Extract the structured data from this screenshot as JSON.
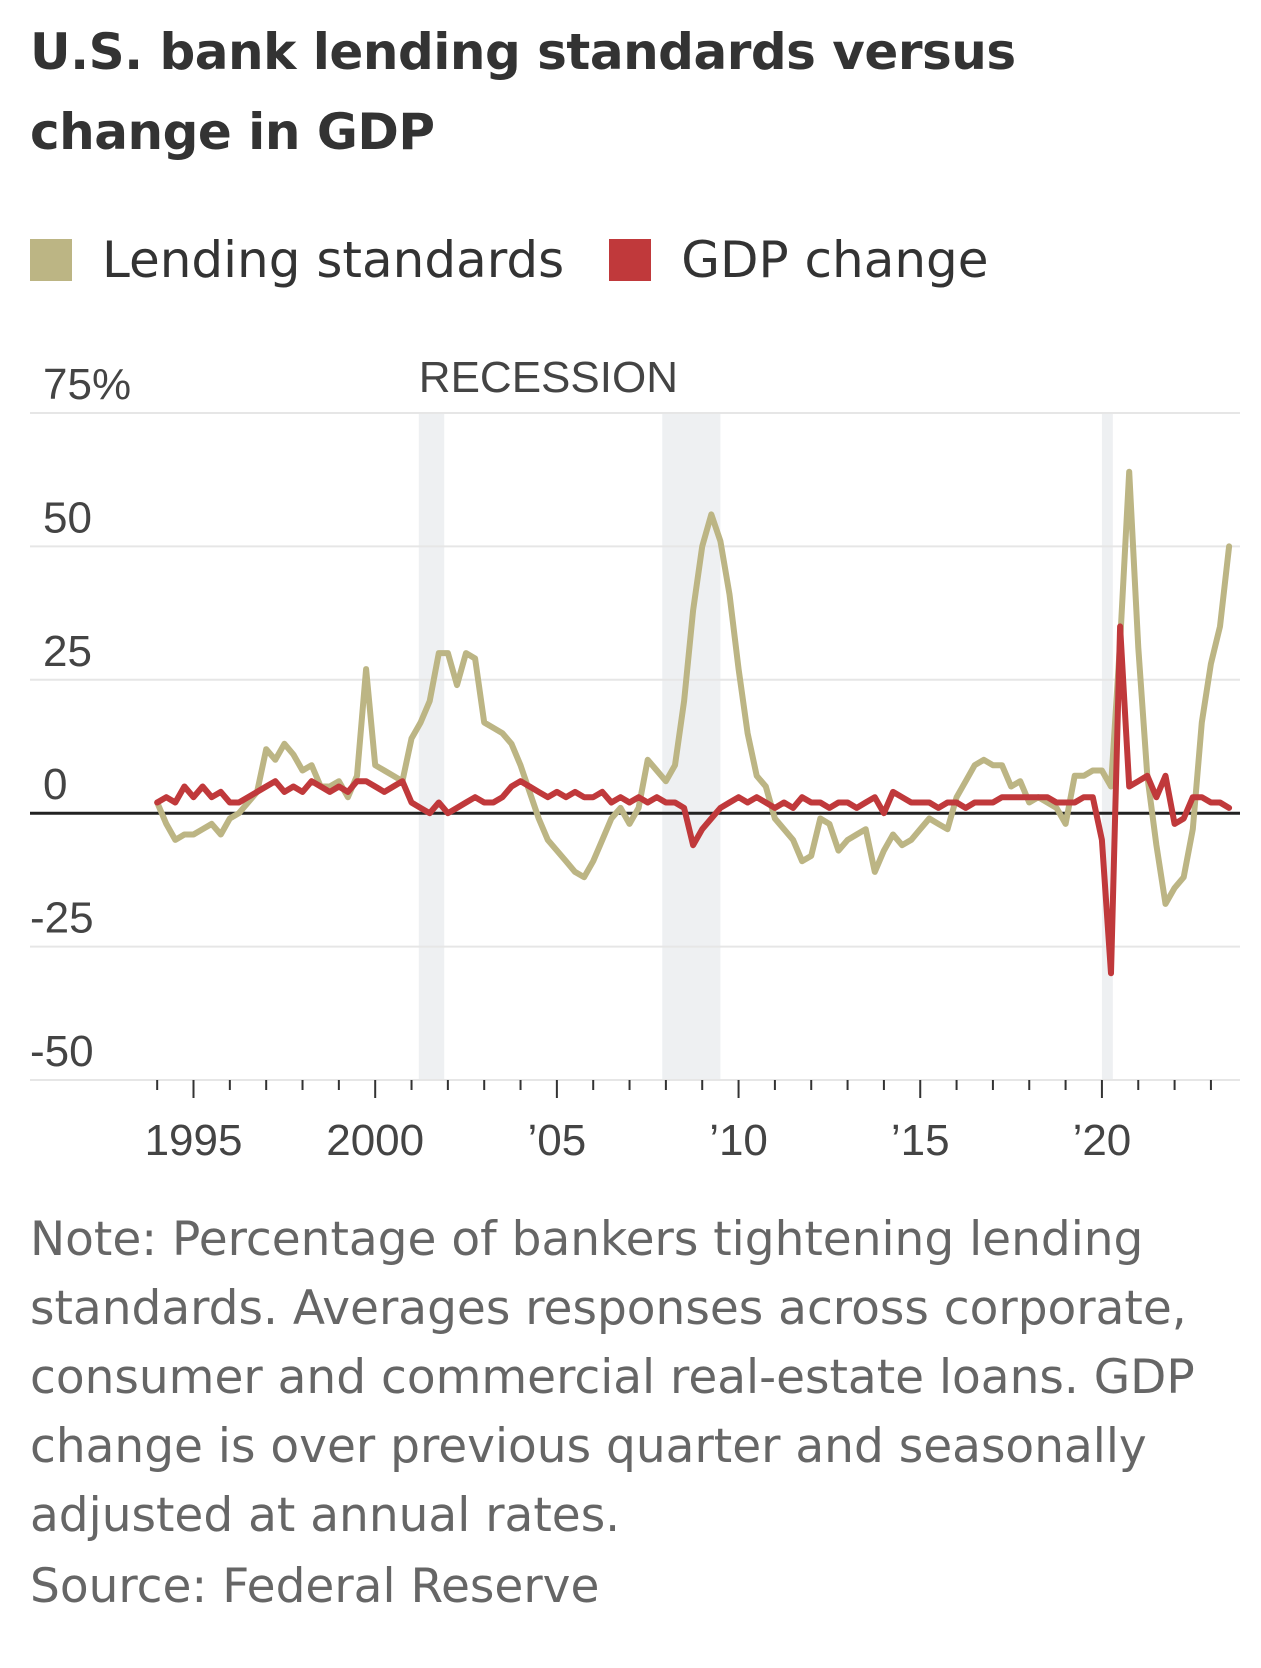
{
  "title": "U.S. bank lending standards versus change in GDP",
  "legend": [
    {
      "label": "Lending standards",
      "color": "#bcb584"
    },
    {
      "label": "GDP change",
      "color": "#c0393b"
    }
  ],
  "note": "Note: Percentage of bankers tightening lending standards. Averages responses across corporate, consumer and commercial real-estate loans. GDP change is over previous quarter and seasonally adjusted at annual rates.",
  "source": "Source: Federal Reserve",
  "chart_data": {
    "type": "line",
    "y_ticks": [
      {
        "value": 75,
        "label": "75%"
      },
      {
        "value": 50,
        "label": "50"
      },
      {
        "value": 25,
        "label": "25"
      },
      {
        "value": 0,
        "label": "0"
      },
      {
        "value": -25,
        "label": "-25"
      },
      {
        "value": -50,
        "label": "-50"
      }
    ],
    "x_ticks": [
      {
        "value": 1995,
        "label": "1995"
      },
      {
        "value": 2000,
        "label": "2000"
      },
      {
        "value": 2005,
        "label": "’0 5"
      },
      {
        "value": 2010,
        "label": "’10"
      },
      {
        "value": 2015,
        "label": "’15"
      },
      {
        "value": 2020,
        "label": "’20"
      }
    ],
    "xlim": [
      1990.5,
      2023.8
    ],
    "ylim": [
      -50,
      75
    ],
    "recession_label": "RECESSION",
    "recessions": [
      [
        2001.2,
        2001.9
      ],
      [
        2007.9,
        2009.5
      ],
      [
        2020.0,
        2020.3
      ]
    ],
    "series": [
      {
        "name": "Lending standards",
        "color": "#bcb584",
        "points": [
          [
            1994.0,
            2
          ],
          [
            1994.25,
            -2
          ],
          [
            1994.5,
            -5
          ],
          [
            1994.75,
            -4
          ],
          [
            1995.0,
            -4
          ],
          [
            1995.25,
            -3
          ],
          [
            1995.5,
            -2
          ],
          [
            1995.75,
            -4
          ],
          [
            1996.0,
            -1
          ],
          [
            1996.25,
            0
          ],
          [
            1996.5,
            2
          ],
          [
            1996.75,
            4
          ],
          [
            1997.0,
            12
          ],
          [
            1997.25,
            10
          ],
          [
            1997.5,
            13
          ],
          [
            1997.75,
            11
          ],
          [
            1998.0,
            8
          ],
          [
            1998.25,
            9
          ],
          [
            1998.5,
            5
          ],
          [
            1998.75,
            5
          ],
          [
            1999.0,
            6
          ],
          [
            1999.25,
            3
          ],
          [
            1999.5,
            7
          ],
          [
            1999.75,
            27
          ],
          [
            2000.0,
            9
          ],
          [
            2000.25,
            8
          ],
          [
            2000.5,
            7
          ],
          [
            2000.75,
            6
          ],
          [
            2001.0,
            14
          ],
          [
            2001.25,
            17
          ],
          [
            2001.5,
            21
          ],
          [
            2001.75,
            30
          ],
          [
            2002.0,
            30
          ],
          [
            2002.25,
            24
          ],
          [
            2002.5,
            30
          ],
          [
            2002.75,
            29
          ],
          [
            2003.0,
            17
          ],
          [
            2003.25,
            16
          ],
          [
            2003.5,
            15
          ],
          [
            2003.75,
            13
          ],
          [
            2004.0,
            9
          ],
          [
            2004.25,
            4
          ],
          [
            2004.5,
            -1
          ],
          [
            2004.75,
            -5
          ],
          [
            2005.0,
            -7
          ],
          [
            2005.25,
            -9
          ],
          [
            2005.5,
            -11
          ],
          [
            2005.75,
            -12
          ],
          [
            2006.0,
            -9
          ],
          [
            2006.25,
            -5
          ],
          [
            2006.5,
            -1
          ],
          [
            2006.75,
            1
          ],
          [
            2007.0,
            -2
          ],
          [
            2007.25,
            1
          ],
          [
            2007.5,
            10
          ],
          [
            2007.75,
            8
          ],
          [
            2008.0,
            6
          ],
          [
            2008.25,
            9
          ],
          [
            2008.5,
            21
          ],
          [
            2008.75,
            38
          ],
          [
            2009.0,
            50
          ],
          [
            2009.25,
            56
          ],
          [
            2009.5,
            51
          ],
          [
            2009.75,
            41
          ],
          [
            2010.0,
            27
          ],
          [
            2010.25,
            15
          ],
          [
            2010.5,
            7
          ],
          [
            2010.75,
            5
          ],
          [
            2011.0,
            -1
          ],
          [
            2011.25,
            -3
          ],
          [
            2011.5,
            -5
          ],
          [
            2011.75,
            -9
          ],
          [
            2012.0,
            -8
          ],
          [
            2012.25,
            -1
          ],
          [
            2012.5,
            -2
          ],
          [
            2012.75,
            -7
          ],
          [
            2013.0,
            -5
          ],
          [
            2013.25,
            -4
          ],
          [
            2013.5,
            -3
          ],
          [
            2013.75,
            -11
          ],
          [
            2014.0,
            -7
          ],
          [
            2014.25,
            -4
          ],
          [
            2014.5,
            -6
          ],
          [
            2014.75,
            -5
          ],
          [
            2015.0,
            -3
          ],
          [
            2015.25,
            -1
          ],
          [
            2015.5,
            -2
          ],
          [
            2015.75,
            -3
          ],
          [
            2016.0,
            3
          ],
          [
            2016.25,
            6
          ],
          [
            2016.5,
            9
          ],
          [
            2016.75,
            10
          ],
          [
            2017.0,
            9
          ],
          [
            2017.25,
            9
          ],
          [
            2017.5,
            5
          ],
          [
            2017.75,
            6
          ],
          [
            2018.0,
            2
          ],
          [
            2018.25,
            3
          ],
          [
            2018.5,
            2
          ],
          [
            2018.75,
            1
          ],
          [
            2019.0,
            -2
          ],
          [
            2019.25,
            7
          ],
          [
            2019.5,
            7
          ],
          [
            2019.75,
            8
          ],
          [
            2020.0,
            8
          ],
          [
            2020.25,
            5
          ],
          [
            2020.5,
            32
          ],
          [
            2020.75,
            64
          ],
          [
            2021.0,
            31
          ],
          [
            2021.25,
            7
          ],
          [
            2021.5,
            -6
          ],
          [
            2021.75,
            -17
          ],
          [
            2022.0,
            -14
          ],
          [
            2022.25,
            -12
          ],
          [
            2022.5,
            -3
          ],
          [
            2022.75,
            17
          ],
          [
            2023.0,
            28
          ],
          [
            2023.25,
            35
          ],
          [
            2023.5,
            50
          ]
        ]
      },
      {
        "name": "GDP change",
        "color": "#c0393b",
        "points": [
          [
            1994.0,
            2
          ],
          [
            1994.25,
            3
          ],
          [
            1994.5,
            2
          ],
          [
            1994.75,
            5
          ],
          [
            1995.0,
            3
          ],
          [
            1995.25,
            5
          ],
          [
            1995.5,
            3
          ],
          [
            1995.75,
            4
          ],
          [
            1996.0,
            2
          ],
          [
            1996.25,
            2
          ],
          [
            1996.5,
            3
          ],
          [
            1996.75,
            4
          ],
          [
            1997.0,
            5
          ],
          [
            1997.25,
            6
          ],
          [
            1997.5,
            4
          ],
          [
            1997.75,
            5
          ],
          [
            1998.0,
            4
          ],
          [
            1998.25,
            6
          ],
          [
            1998.5,
            5
          ],
          [
            1998.75,
            4
          ],
          [
            1999.0,
            5
          ],
          [
            1999.25,
            4
          ],
          [
            1999.5,
            6
          ],
          [
            1999.75,
            6
          ],
          [
            2000.0,
            5
          ],
          [
            2000.25,
            4
          ],
          [
            2000.5,
            5
          ],
          [
            2000.75,
            6
          ],
          [
            2001.0,
            2
          ],
          [
            2001.25,
            1
          ],
          [
            2001.5,
            0
          ],
          [
            2001.75,
            2
          ],
          [
            2002.0,
            0
          ],
          [
            2002.25,
            1
          ],
          [
            2002.5,
            2
          ],
          [
            2002.75,
            3
          ],
          [
            2003.0,
            2
          ],
          [
            2003.25,
            2
          ],
          [
            2003.5,
            3
          ],
          [
            2003.75,
            5
          ],
          [
            2004.0,
            6
          ],
          [
            2004.25,
            5
          ],
          [
            2004.5,
            4
          ],
          [
            2004.75,
            3
          ],
          [
            2005.0,
            4
          ],
          [
            2005.25,
            3
          ],
          [
            2005.5,
            4
          ],
          [
            2005.75,
            3
          ],
          [
            2006.0,
            3
          ],
          [
            2006.25,
            4
          ],
          [
            2006.5,
            2
          ],
          [
            2006.75,
            3
          ],
          [
            2007.0,
            2
          ],
          [
            2007.25,
            3
          ],
          [
            2007.5,
            2
          ],
          [
            2007.75,
            3
          ],
          [
            2008.0,
            2
          ],
          [
            2008.25,
            2
          ],
          [
            2008.5,
            1
          ],
          [
            2008.75,
            -6
          ],
          [
            2009.0,
            -3
          ],
          [
            2009.25,
            -1
          ],
          [
            2009.5,
            1
          ],
          [
            2009.75,
            2
          ],
          [
            2010.0,
            3
          ],
          [
            2010.25,
            2
          ],
          [
            2010.5,
            3
          ],
          [
            2010.75,
            2
          ],
          [
            2011.0,
            1
          ],
          [
            2011.25,
            2
          ],
          [
            2011.5,
            1
          ],
          [
            2011.75,
            3
          ],
          [
            2012.0,
            2
          ],
          [
            2012.25,
            2
          ],
          [
            2012.5,
            1
          ],
          [
            2012.75,
            2
          ],
          [
            2013.0,
            2
          ],
          [
            2013.25,
            1
          ],
          [
            2013.5,
            2
          ],
          [
            2013.75,
            3
          ],
          [
            2014.0,
            0
          ],
          [
            2014.25,
            4
          ],
          [
            2014.5,
            3
          ],
          [
            2014.75,
            2
          ],
          [
            2015.0,
            2
          ],
          [
            2015.25,
            2
          ],
          [
            2015.5,
            1
          ],
          [
            2015.75,
            2
          ],
          [
            2016.0,
            2
          ],
          [
            2016.25,
            1
          ],
          [
            2016.5,
            2
          ],
          [
            2016.75,
            2
          ],
          [
            2017.0,
            2
          ],
          [
            2017.25,
            3
          ],
          [
            2017.5,
            3
          ],
          [
            2017.75,
            3
          ],
          [
            2018.0,
            3
          ],
          [
            2018.25,
            3
          ],
          [
            2018.5,
            3
          ],
          [
            2018.75,
            2
          ],
          [
            2019.0,
            2
          ],
          [
            2019.25,
            2
          ],
          [
            2019.5,
            3
          ],
          [
            2019.75,
            3
          ],
          [
            2020.0,
            -5
          ],
          [
            2020.25,
            -30
          ],
          [
            2020.5,
            35
          ],
          [
            2020.75,
            5
          ],
          [
            2021.0,
            6
          ],
          [
            2021.25,
            7
          ],
          [
            2021.5,
            3
          ],
          [
            2021.75,
            7
          ],
          [
            2022.0,
            -2
          ],
          [
            2022.25,
            -1
          ],
          [
            2022.5,
            3
          ],
          [
            2022.75,
            3
          ],
          [
            2023.0,
            2
          ],
          [
            2023.25,
            2
          ],
          [
            2023.5,
            1
          ]
        ]
      }
    ]
  }
}
